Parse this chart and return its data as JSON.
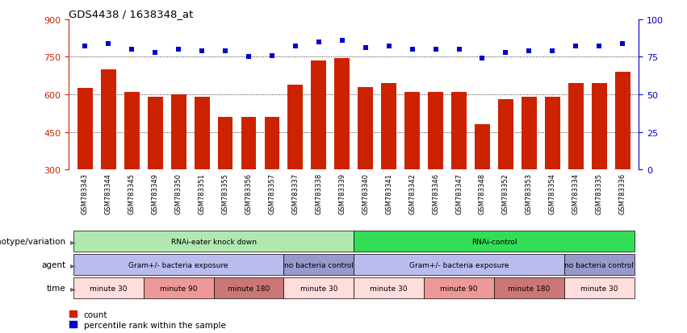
{
  "title": "GDS4438 / 1638348_at",
  "samples": [
    "GSM783343",
    "GSM783344",
    "GSM783345",
    "GSM783349",
    "GSM783350",
    "GSM783351",
    "GSM783355",
    "GSM783356",
    "GSM783357",
    "GSM783337",
    "GSM783338",
    "GSM783339",
    "GSM783340",
    "GSM783341",
    "GSM783342",
    "GSM783346",
    "GSM783347",
    "GSM783348",
    "GSM783352",
    "GSM783353",
    "GSM783354",
    "GSM783334",
    "GSM783335",
    "GSM783336"
  ],
  "counts": [
    625,
    700,
    610,
    590,
    600,
    590,
    510,
    510,
    510,
    640,
    735,
    745,
    630,
    645,
    610,
    610,
    610,
    480,
    580,
    590,
    590,
    645,
    645,
    690
  ],
  "percentile_ranks": [
    82,
    84,
    80,
    78,
    80,
    79,
    79,
    75,
    76,
    82,
    85,
    86,
    81,
    82,
    80,
    80,
    80,
    74,
    78,
    79,
    79,
    82,
    82,
    84
  ],
  "bar_color": "#cc2200",
  "dot_color": "#0000cc",
  "ylim_left": [
    300,
    900
  ],
  "yticks_left": [
    300,
    450,
    600,
    750,
    900
  ],
  "ylim_right": [
    0,
    100
  ],
  "yticks_right": [
    0,
    25,
    50,
    75,
    100
  ],
  "hlines": [
    450,
    600,
    750
  ],
  "xtick_area_color": "#dddddd",
  "genotype_groups": [
    {
      "text": "RNAi-eater knock down",
      "start": 0,
      "end": 12,
      "color": "#b0e8b0"
    },
    {
      "text": "RNAi-control",
      "start": 12,
      "end": 24,
      "color": "#33dd55"
    }
  ],
  "agent_groups": [
    {
      "text": "Gram+/- bacteria exposure",
      "start": 0,
      "end": 9,
      "color": "#bbbbee"
    },
    {
      "text": "no bacteria control",
      "start": 9,
      "end": 12,
      "color": "#9999cc"
    },
    {
      "text": "Gram+/- bacteria exposure",
      "start": 12,
      "end": 21,
      "color": "#bbbbee"
    },
    {
      "text": "no bacteria control",
      "start": 21,
      "end": 24,
      "color": "#9999cc"
    }
  ],
  "time_groups": [
    {
      "text": "minute 30",
      "start": 0,
      "end": 3,
      "color": "#ffdddd"
    },
    {
      "text": "minute 90",
      "start": 3,
      "end": 6,
      "color": "#ee9999"
    },
    {
      "text": "minute 180",
      "start": 6,
      "end": 9,
      "color": "#cc7777"
    },
    {
      "text": "minute 30",
      "start": 9,
      "end": 12,
      "color": "#ffdddd"
    },
    {
      "text": "minute 30",
      "start": 12,
      "end": 15,
      "color": "#ffdddd"
    },
    {
      "text": "minute 90",
      "start": 15,
      "end": 18,
      "color": "#ee9999"
    },
    {
      "text": "minute 180",
      "start": 18,
      "end": 21,
      "color": "#cc7777"
    },
    {
      "text": "minute 30",
      "start": 21,
      "end": 24,
      "color": "#ffdddd"
    }
  ],
  "row_labels": [
    "genotype/variation",
    "agent",
    "time"
  ],
  "legend_items": [
    {
      "label": "count",
      "color": "#cc2200"
    },
    {
      "label": "percentile rank within the sample",
      "color": "#0000cc"
    }
  ]
}
